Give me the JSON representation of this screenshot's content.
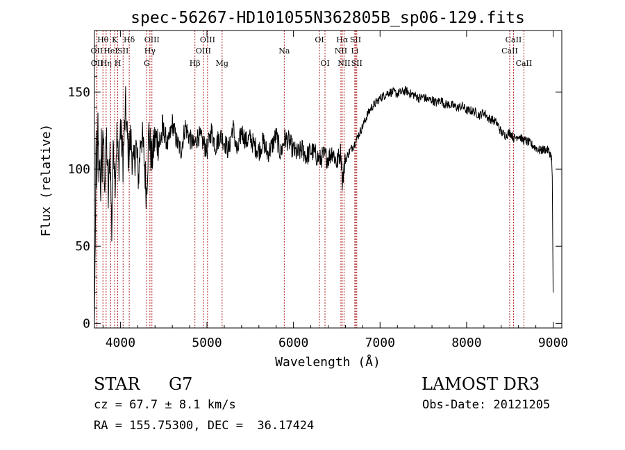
{
  "chart_data": {
    "type": "line",
    "title": "spec-56267-HD101055N362805B_sp06-129.fits",
    "xlabel": "Wavelength (Å)",
    "ylabel": "Flux (relative)",
    "xlim": [
      3700,
      9100
    ],
    "ylim": [
      -3,
      190
    ],
    "xticks": [
      4000,
      5000,
      6000,
      7000,
      8000,
      9000
    ],
    "yticks": [
      0,
      50,
      100,
      150
    ],
    "line_color": "#000000",
    "marker_color": "#b22222",
    "grid": false,
    "spectrum": {
      "x": [
        3700,
        3710,
        3720,
        3730,
        3740,
        3750,
        3760,
        3770,
        3780,
        3790,
        3800,
        3820,
        3840,
        3860,
        3880,
        3900,
        3920,
        3940,
        3960,
        3980,
        4000,
        4030,
        4060,
        4090,
        4120,
        4150,
        4180,
        4210,
        4240,
        4270,
        4300,
        4330,
        4360,
        4400,
        4450,
        4500,
        4550,
        4600,
        4650,
        4700,
        4750,
        4800,
        4850,
        4900,
        4950,
        5000,
        5050,
        5100,
        5150,
        5200,
        5250,
        5300,
        5350,
        5400,
        5450,
        5500,
        5550,
        5600,
        5650,
        5700,
        5750,
        5800,
        5850,
        5900,
        5950,
        6000,
        6050,
        6100,
        6150,
        6200,
        6250,
        6300,
        6350,
        6400,
        6450,
        6500,
        6550,
        6563,
        6600,
        6650,
        6700,
        6750,
        6800,
        6850,
        6900,
        6950,
        7000,
        7050,
        7100,
        7150,
        7200,
        7250,
        7300,
        7350,
        7400,
        7450,
        7500,
        7550,
        7600,
        7650,
        7700,
        7750,
        7800,
        7850,
        7900,
        7950,
        8000,
        8050,
        8100,
        8150,
        8200,
        8250,
        8300,
        8350,
        8400,
        8450,
        8500,
        8550,
        8600,
        8650,
        8700,
        8750,
        8800,
        8850,
        8900,
        8950,
        8980,
        8990,
        9000
      ],
      "y": [
        0,
        55,
        120,
        85,
        130,
        100,
        110,
        75,
        120,
        95,
        125,
        90,
        120,
        80,
        115,
        60,
        118,
        95,
        122,
        100,
        128,
        105,
        140,
        110,
        120,
        100,
        115,
        95,
        125,
        110,
        85,
        125,
        105,
        120,
        118,
        125,
        115,
        130,
        118,
        112,
        128,
        120,
        115,
        122,
        118,
        112,
        125,
        115,
        122,
        118,
        112,
        128,
        110,
        125,
        118,
        120,
        115,
        112,
        118,
        110,
        115,
        122,
        110,
        120,
        118,
        112,
        110,
        113,
        108,
        112,
        110,
        106,
        109,
        107,
        112,
        104,
        112,
        93,
        106,
        112,
        116,
        122,
        128,
        135,
        140,
        143,
        146,
        148,
        150,
        150,
        149,
        150,
        151,
        149,
        148,
        146,
        147,
        145,
        145,
        143,
        145,
        142,
        142,
        141,
        140,
        141,
        138,
        138,
        137,
        135,
        137,
        133,
        132,
        130,
        124,
        122,
        124,
        120,
        122,
        119,
        118,
        116,
        114,
        112,
        113,
        112,
        108,
        95,
        20
      ]
    },
    "line_markers": [
      {
        "label": "Hθ",
        "row": 1,
        "x": 3798
      },
      {
        "label": "Hη",
        "row": 3,
        "x": 3835
      },
      {
        "label": "HeI",
        "row": 2,
        "x": 3888
      },
      {
        "label": "K",
        "row": 1,
        "x": 3934
      },
      {
        "label": "H",
        "row": 3,
        "x": 3969
      },
      {
        "label": "SII",
        "row": 2,
        "x": 4031
      },
      {
        "label": "Hδ",
        "row": 1,
        "x": 4102
      },
      {
        "label": "OIII",
        "row": 1,
        "x": 4364
      },
      {
        "label": "Hγ",
        "row": 2,
        "x": 4341
      },
      {
        "label": "G",
        "row": 3,
        "x": 4305
      },
      {
        "label": "Hβ",
        "row": 3,
        "x": 4861
      },
      {
        "label": "OIII",
        "row": 1,
        "x": 5007
      },
      {
        "label": "OIII",
        "row": 2,
        "x": 4959
      },
      {
        "label": "Mg",
        "row": 3,
        "x": 5175
      },
      {
        "label": "Na",
        "row": 2,
        "x": 5893
      },
      {
        "label": "OI",
        "row": 1,
        "x": 6300
      },
      {
        "label": "OI",
        "row": 3,
        "x": 6364
      },
      {
        "label": "Hα",
        "row": 1,
        "x": 6563
      },
      {
        "label": "NII",
        "row": 2,
        "x": 6548
      },
      {
        "label": "NII",
        "row": 3,
        "x": 6584
      },
      {
        "label": "SII",
        "row": 1,
        "x": 6717
      },
      {
        "label": "Li",
        "row": 2,
        "x": 6708
      },
      {
        "label": "SII",
        "row": 3,
        "x": 6731
      },
      {
        "label": "CaII",
        "row": 1,
        "x": 8542
      },
      {
        "label": "CaII",
        "row": 2,
        "x": 8498
      },
      {
        "label": "CaII",
        "row": 3,
        "x": 8662
      },
      {
        "label": "OII",
        "row": 2,
        "x": 3727
      },
      {
        "label": "OII",
        "row": 3,
        "x": 3729
      }
    ]
  },
  "footer": {
    "class_label": "STAR",
    "subclass": "G7",
    "survey": "LAMOST DR3",
    "redshift": "cz = 67.7 ± 8.1 km/s",
    "obs_date": "Obs-Date: 20121205",
    "coords": "RA = 155.75300, DEC =  36.17424"
  }
}
